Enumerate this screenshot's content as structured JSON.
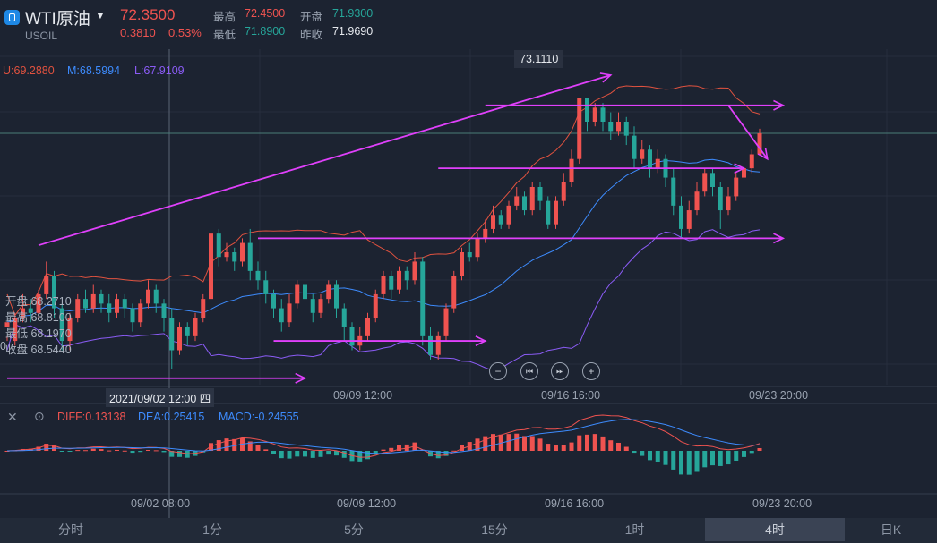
{
  "header": {
    "title": "WTI原油",
    "symbol": "USOIL",
    "price": "72.3500",
    "change": "0.3810",
    "change_pct": "0.53%",
    "high_label": "最高",
    "high_value": "72.4500",
    "open_label": "开盘",
    "open_value": "71.9300",
    "low_label": "最低",
    "low_value": "71.8900",
    "prev_label": "昨收",
    "prev_value": "71.9690"
  },
  "boll": {
    "upper": "U:69.2880",
    "mid": "M:68.5994",
    "lower": "L:67.9109"
  },
  "ohlc_panel": {
    "open": "开盘 68.2710",
    "high": "最高 68.8100",
    "low": "最低 68.1970",
    "close": "收盘 68.5440",
    "left_glyph": "0"
  },
  "peak_label": "73.1110",
  "crosshair_date": "2021/09/02 12:00 四",
  "price_axis_dates": [
    "09/09 12:00",
    "09/16 16:00",
    "09/23 20:00"
  ],
  "macd_axis_dates": [
    "09/02 08:00",
    "09/09 12:00",
    "09/16 16:00",
    "09/23 20:00"
  ],
  "macd": {
    "diff": "DIFF:0.13138",
    "dea": "DEA:0.25415",
    "macd": "MACD:-0.24555"
  },
  "nav": {
    "zoom_out": "−",
    "prev": "⏮",
    "next": "⏭",
    "zoom_in": "+"
  },
  "tabs": [
    "分时",
    "1分",
    "5分",
    "15分",
    "1时",
    "4时",
    "日K"
  ],
  "active_tab": "4时",
  "colors": {
    "up": "#ef5350",
    "down": "#26a69a",
    "upper_band": "#e0523f",
    "mid_band": "#3d8bfd",
    "lower_band": "#8b5cf6",
    "annotation": "#e040fb",
    "diff": "#ef5350",
    "dea": "#3d8bfd"
  },
  "chart_data": {
    "type": "candlestick",
    "symbol": "USOIL",
    "ylim": [
      67.0,
      74.0
    ],
    "candles": [
      [
        68.2,
        68.3,
        68.0,
        67.9
      ],
      [
        67.9,
        68.4,
        68.5,
        67.8
      ],
      [
        68.4,
        68.6,
        68.9,
        68.3
      ],
      [
        68.6,
        68.5,
        68.8,
        68.3
      ],
      [
        68.5,
        68.9,
        69.0,
        68.4
      ],
      [
        68.9,
        69.3,
        69.6,
        68.8
      ],
      [
        69.3,
        68.6,
        69.4,
        68.4
      ],
      [
        68.6,
        67.9,
        68.7,
        67.7
      ],
      [
        67.9,
        68.4,
        68.5,
        67.7
      ],
      [
        68.4,
        68.8,
        68.9,
        68.3
      ],
      [
        68.8,
        68.6,
        69.0,
        68.5
      ],
      [
        68.6,
        68.9,
        69.1,
        68.5
      ],
      [
        68.9,
        68.7,
        69.0,
        68.5
      ],
      [
        68.7,
        68.5,
        68.9,
        68.3
      ],
      [
        68.5,
        68.8,
        68.9,
        68.4
      ],
      [
        68.8,
        68.6,
        68.9,
        68.4
      ],
      [
        68.6,
        68.3,
        68.7,
        68.1
      ],
      [
        68.3,
        68.7,
        68.8,
        68.2
      ],
      [
        68.7,
        69.0,
        69.2,
        68.6
      ],
      [
        69.0,
        68.7,
        69.1,
        68.5
      ],
      [
        68.7,
        68.4,
        68.8,
        68.1
      ],
      [
        68.4,
        67.7,
        68.6,
        67.3
      ],
      [
        67.7,
        68.2,
        68.3,
        67.6
      ],
      [
        68.2,
        68.0,
        68.3,
        67.8
      ],
      [
        68.0,
        68.4,
        68.5,
        67.9
      ],
      [
        68.4,
        68.8,
        68.9,
        68.3
      ],
      [
        68.8,
        70.2,
        70.3,
        68.7
      ],
      [
        70.2,
        69.7,
        70.3,
        69.5
      ],
      [
        69.7,
        69.8,
        70.0,
        69.6
      ],
      [
        69.8,
        69.6,
        69.9,
        69.4
      ],
      [
        69.6,
        70.0,
        70.1,
        69.5
      ],
      [
        70.0,
        69.4,
        70.3,
        69.2
      ],
      [
        69.4,
        69.2,
        69.6,
        69.0
      ],
      [
        69.2,
        68.9,
        69.4,
        68.7
      ],
      [
        68.9,
        68.6,
        69.0,
        68.4
      ],
      [
        68.6,
        68.3,
        68.8,
        68.1
      ],
      [
        68.3,
        68.7,
        68.9,
        68.2
      ],
      [
        68.7,
        69.1,
        69.2,
        68.6
      ],
      [
        69.1,
        68.8,
        69.2,
        68.6
      ],
      [
        68.8,
        68.5,
        68.9,
        68.3
      ],
      [
        68.5,
        68.8,
        68.9,
        68.4
      ],
      [
        68.8,
        69.1,
        69.2,
        68.7
      ],
      [
        69.1,
        68.6,
        69.2,
        68.4
      ],
      [
        68.6,
        68.2,
        68.7,
        67.9
      ],
      [
        68.2,
        67.8,
        68.3,
        67.7
      ],
      [
        67.8,
        68.0,
        68.2,
        67.7
      ],
      [
        68.0,
        68.4,
        68.5,
        67.9
      ],
      [
        68.4,
        68.9,
        69.0,
        68.3
      ],
      [
        68.9,
        69.3,
        69.4,
        68.8
      ],
      [
        69.3,
        69.0,
        69.4,
        68.8
      ],
      [
        69.0,
        69.4,
        69.5,
        68.9
      ],
      [
        69.4,
        69.2,
        69.5,
        69.0
      ],
      [
        69.2,
        69.6,
        69.8,
        69.1
      ],
      [
        69.6,
        68.0,
        69.7,
        67.8
      ],
      [
        68.0,
        67.6,
        68.2,
        67.5
      ],
      [
        67.6,
        68.0,
        68.1,
        67.5
      ],
      [
        68.0,
        68.6,
        68.7,
        67.9
      ],
      [
        68.6,
        69.3,
        69.4,
        68.5
      ],
      [
        69.3,
        69.8,
        69.9,
        69.2
      ],
      [
        69.8,
        69.7,
        70.0,
        69.6
      ],
      [
        69.7,
        70.1,
        70.2,
        69.6
      ],
      [
        70.1,
        70.3,
        70.5,
        70.0
      ],
      [
        70.3,
        70.6,
        70.8,
        70.2
      ],
      [
        70.6,
        70.4,
        70.7,
        70.3
      ],
      [
        70.4,
        70.8,
        70.9,
        70.3
      ],
      [
        70.8,
        71.0,
        71.2,
        70.7
      ],
      [
        71.0,
        70.7,
        71.1,
        70.6
      ],
      [
        70.7,
        71.2,
        71.3,
        70.6
      ],
      [
        71.2,
        70.9,
        71.3,
        70.7
      ],
      [
        70.9,
        70.4,
        71.0,
        70.3
      ],
      [
        70.4,
        70.9,
        71.0,
        70.3
      ],
      [
        70.9,
        71.3,
        71.5,
        70.8
      ],
      [
        71.3,
        71.8,
        72.0,
        71.2
      ],
      [
        71.8,
        73.1,
        73.111,
        71.7
      ],
      [
        73.1,
        72.6,
        73.111,
        72.4
      ],
      [
        72.6,
        72.9,
        73.0,
        72.5
      ],
      [
        72.9,
        72.6,
        73.0,
        72.4
      ],
      [
        72.6,
        72.4,
        72.8,
        72.2
      ],
      [
        72.4,
        72.6,
        72.8,
        72.3
      ],
      [
        72.6,
        72.3,
        72.7,
        72.1
      ],
      [
        72.3,
        71.8,
        72.5,
        71.6
      ],
      [
        71.8,
        72.0,
        72.2,
        71.7
      ],
      [
        72.0,
        71.6,
        72.1,
        71.4
      ],
      [
        71.6,
        71.8,
        72.0,
        71.5
      ],
      [
        71.8,
        71.4,
        71.9,
        71.2
      ],
      [
        71.4,
        70.8,
        71.6,
        70.6
      ],
      [
        70.8,
        70.3,
        71.0,
        70.1
      ],
      [
        70.3,
        70.7,
        70.9,
        70.2
      ],
      [
        70.7,
        71.1,
        71.3,
        70.6
      ],
      [
        71.1,
        71.5,
        71.6,
        71.0
      ],
      [
        71.5,
        71.2,
        71.6,
        71.0
      ],
      [
        71.2,
        70.7,
        71.3,
        70.3
      ],
      [
        70.7,
        71.0,
        71.2,
        70.6
      ],
      [
        71.0,
        71.4,
        71.5,
        70.9
      ],
      [
        71.4,
        71.6,
        71.8,
        71.3
      ],
      [
        71.6,
        71.9,
        72.0,
        71.5
      ],
      [
        71.9,
        72.35,
        72.45,
        71.89
      ]
    ],
    "annotations": [
      {
        "type": "trendline_arrow",
        "from": [
          4,
          69.95
        ],
        "to": [
          77,
          73.6
        ]
      },
      {
        "type": "hline_arrow",
        "y": 72.95,
        "from": 61,
        "to": 99
      },
      {
        "type": "hline_arrow",
        "y": 71.6,
        "from": 55,
        "to": 94
      },
      {
        "type": "hline_arrow",
        "y": 70.1,
        "from": 32,
        "to": 99
      },
      {
        "type": "hline_arrow",
        "y": 67.9,
        "from": 34,
        "to": 61
      },
      {
        "type": "hline_arrow",
        "y": 67.1,
        "from": 0,
        "to": 38
      },
      {
        "type": "down_arrow",
        "from": [
          92,
          72.95
        ],
        "to": [
          97,
          71.8
        ]
      }
    ]
  }
}
